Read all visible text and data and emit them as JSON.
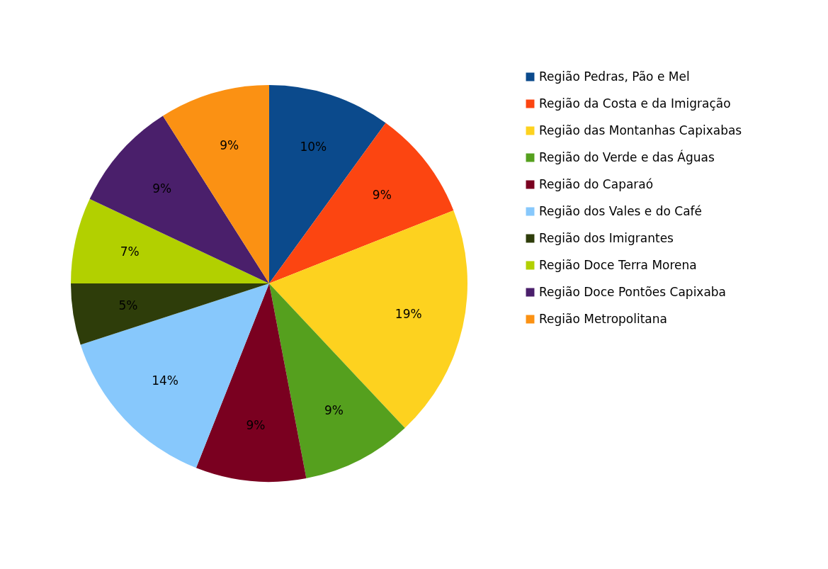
{
  "chart_data": {
    "type": "pie",
    "categories": [
      "Região Pedras, Pão e Mel",
      "Região da Costa e da Imigração",
      "Região das Montanhas Capixabas",
      "Região do Verde e das Águas",
      "Região do Caparaó",
      "Região dos Vales e do Café",
      "Região dos Imigrantes",
      "Região Doce Terra Morena",
      "Região Doce Pontões Capixaba",
      "Região Metropolitana"
    ],
    "values": [
      10,
      9,
      19,
      9,
      9,
      14,
      5,
      7,
      9,
      9
    ],
    "value_labels": [
      "10%",
      "9%",
      "19%",
      "9%",
      "9%",
      "14%",
      "5%",
      "7%",
      "9%",
      "9%"
    ],
    "colors": [
      "#0b4a8c",
      "#fc4511",
      "#fdd21f",
      "#55a01e",
      "#7a0020",
      "#87c8fc",
      "#2e3d0a",
      "#b2d000",
      "#4a1f6b",
      "#fb9113"
    ],
    "legend": "right"
  }
}
